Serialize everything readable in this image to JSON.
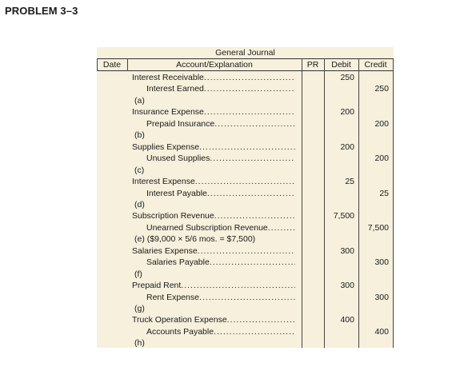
{
  "problem_title": "PROBLEM 3–3",
  "journal": {
    "title": "General Journal",
    "headers": {
      "date": "Date",
      "account": "Account/Explanation",
      "pr": "PR",
      "debit": "Debit",
      "credit": "Credit"
    },
    "rows": [
      {
        "type": "debit",
        "text": "Interest Receivable",
        "debit": "250",
        "credit": ""
      },
      {
        "type": "credit",
        "text": "Interest Earned",
        "debit": "",
        "credit": "250"
      },
      {
        "type": "note",
        "text": "(a)",
        "debit": "",
        "credit": ""
      },
      {
        "type": "debit",
        "text": "Insurance Expense",
        "debit": "200",
        "credit": ""
      },
      {
        "type": "credit",
        "text": "Prepaid Insurance",
        "debit": "",
        "credit": "200"
      },
      {
        "type": "note",
        "text": "(b)",
        "debit": "",
        "credit": ""
      },
      {
        "type": "debit",
        "text": "Supplies Expense",
        "debit": "200",
        "credit": ""
      },
      {
        "type": "credit",
        "text": "Unused Supplies",
        "debit": "",
        "credit": "200"
      },
      {
        "type": "note",
        "text": "(c)",
        "debit": "",
        "credit": ""
      },
      {
        "type": "debit",
        "text": "Interest Expense",
        "debit": "25",
        "credit": ""
      },
      {
        "type": "credit",
        "text": "Interest Payable",
        "debit": "",
        "credit": "25"
      },
      {
        "type": "note",
        "text": "(d)",
        "debit": "",
        "credit": ""
      },
      {
        "type": "debit",
        "text": "Subscription Revenue",
        "debit": "7,500",
        "credit": ""
      },
      {
        "type": "credit",
        "text": "Unearned Subscription Revenue",
        "debit": "",
        "credit": "7,500"
      },
      {
        "type": "note",
        "text": "(e) ($9,000 × 5/6 mos. = $7,500)",
        "debit": "",
        "credit": ""
      },
      {
        "type": "debit",
        "text": "Salaries Expense",
        "debit": "300",
        "credit": ""
      },
      {
        "type": "credit",
        "text": "Salaries Payable",
        "debit": "",
        "credit": "300"
      },
      {
        "type": "note",
        "text": "(f)",
        "debit": "",
        "credit": ""
      },
      {
        "type": "debit",
        "text": "Prepaid Rent",
        "debit": "300",
        "credit": ""
      },
      {
        "type": "credit",
        "text": "Rent Expense",
        "debit": "",
        "credit": "300"
      },
      {
        "type": "note",
        "text": "(g)",
        "debit": "",
        "credit": ""
      },
      {
        "type": "debit",
        "text": "Truck Operation Expense",
        "debit": "400",
        "credit": ""
      },
      {
        "type": "credit",
        "text": "Accounts Payable",
        "debit": "",
        "credit": "400"
      },
      {
        "type": "note",
        "text": "(h)",
        "debit": "",
        "credit": ""
      }
    ]
  },
  "colors": {
    "paper": "#f6f0dc",
    "rule": "#333333"
  }
}
